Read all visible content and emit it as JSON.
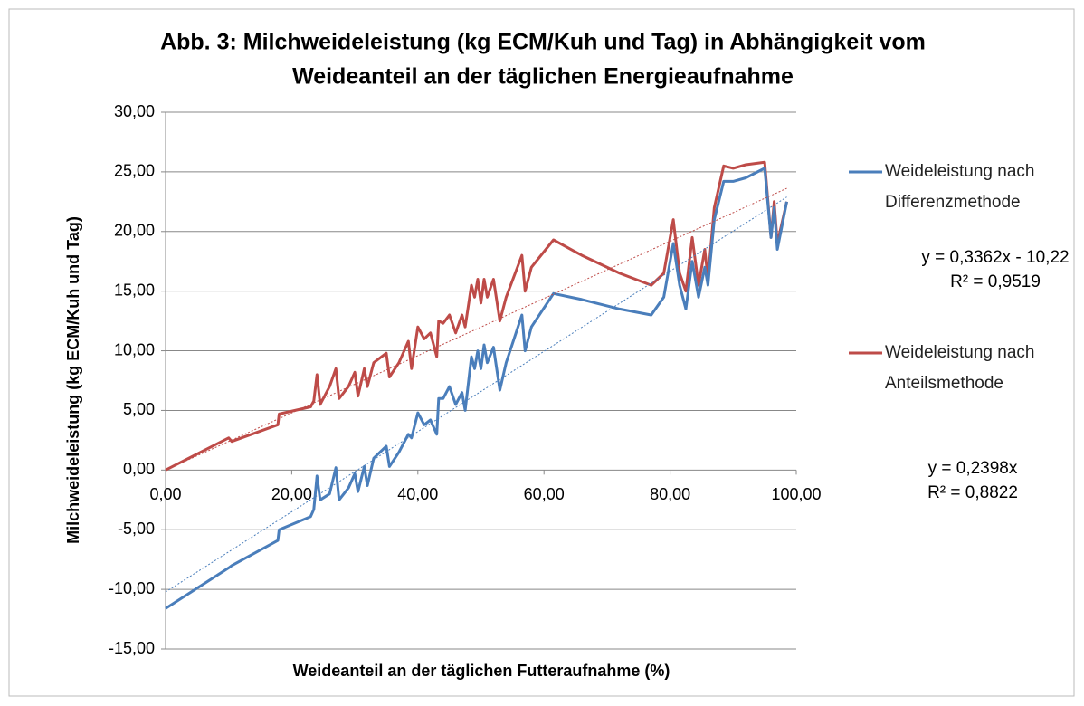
{
  "chart_data": {
    "type": "line",
    "title": [
      "Abb. 3: Milchweideleistung  (kg ECM/Kuh und Tag) in Abhängigkeit vom",
      "Weideanteil an der täglichen Energieaufnahme"
    ],
    "x_label": "Weideanteil an der täglichen Futteraufnahme (%)",
    "y_label": "Milchweideleistung  (kg ECM/Kuh und Tag)",
    "x": [
      0,
      10,
      10.5,
      17.8,
      18,
      23,
      23.5,
      24,
      24.5,
      26,
      27,
      27.5,
      29,
      30,
      30.5,
      31.5,
      32,
      33,
      35,
      35.5,
      37,
      38.5,
      39,
      40,
      41,
      42,
      43,
      43.3,
      44,
      45,
      46,
      47,
      47.5,
      48.5,
      49,
      49.5,
      50,
      50.5,
      51,
      52,
      53,
      54,
      56.5,
      57,
      58,
      61.5,
      66,
      72,
      77,
      79,
      80.5,
      81.5,
      82.5,
      83.5,
      84.5,
      85.5,
      86,
      87,
      88.5,
      90,
      92,
      95,
      96,
      96.5,
      97,
      98.5
    ],
    "series": [
      {
        "name": "Weideleistung nach Differenzmethode",
        "color": "#4a7ebb",
        "values": [
          -11.6,
          -8.2,
          -8.0,
          -5.9,
          -5.0,
          -3.9,
          -3.3,
          -0.5,
          -2.5,
          -2.0,
          0.2,
          -2.5,
          -1.5,
          -0.3,
          -1.8,
          0.3,
          -1.3,
          1.0,
          2.0,
          0.3,
          1.5,
          3.0,
          2.7,
          4.8,
          3.8,
          4.2,
          3.0,
          6.0,
          6.0,
          7.0,
          5.5,
          6.5,
          5.0,
          9.5,
          8.5,
          10.0,
          8.5,
          10.5,
          9.0,
          10.3,
          6.7,
          9.0,
          13.0,
          10.0,
          12.0,
          14.8,
          14.3,
          13.5,
          13.0,
          14.5,
          19.0,
          15.5,
          13.5,
          17.5,
          14.5,
          17.0,
          15.5,
          21.0,
          24.2,
          24.2,
          24.5,
          25.3,
          19.5,
          22.0,
          18.5,
          22.5
        ],
        "trend": {
          "equation": "y = 0,3362x - 10,22",
          "r2": "R² = 0,9519",
          "slope": 0.3362,
          "intercept": -10.22,
          "x": [
            0,
            98.5
          ]
        }
      },
      {
        "name": "Weideleistung nach Anteilsmethode",
        "color": "#be4b48",
        "values": [
          0,
          2.7,
          2.4,
          3.8,
          4.7,
          5.3,
          5.8,
          8.0,
          5.5,
          7.0,
          8.5,
          6.0,
          7.0,
          8.2,
          6.2,
          8.5,
          7.0,
          9.0,
          9.8,
          7.8,
          9.0,
          10.8,
          8.5,
          12.0,
          11.0,
          11.5,
          9.5,
          12.5,
          12.3,
          13.0,
          11.5,
          13.0,
          12.0,
          15.5,
          14.5,
          16.0,
          14.0,
          16.0,
          14.5,
          16.0,
          12.5,
          14.5,
          18.0,
          15.0,
          17.0,
          19.3,
          18.0,
          16.5,
          15.5,
          16.5,
          21.0,
          16.5,
          15.0,
          19.5,
          15.5,
          18.5,
          16.0,
          22.0,
          25.5,
          25.3,
          25.6,
          25.8,
          19.5,
          22.5,
          19.0,
          22.5
        ],
        "trend": {
          "equation": "y = 0,2398x",
          "r2": "R² = 0,8822",
          "slope": 0.2398,
          "intercept": 0,
          "x": [
            0,
            98.5
          ]
        }
      }
    ],
    "xlim": [
      0,
      100
    ],
    "xticks": [
      {
        "value": 0,
        "label": "0,00"
      },
      {
        "value": 20,
        "label": "20,00"
      },
      {
        "value": 40,
        "label": "40,00"
      },
      {
        "value": 60,
        "label": "60,00"
      },
      {
        "value": 80,
        "label": "80,00"
      },
      {
        "value": 100,
        "label": "100,00"
      }
    ],
    "ylim": [
      -15,
      30
    ],
    "yticks": [
      {
        "value": -15,
        "label": "-15,00"
      },
      {
        "value": -10,
        "label": "-10,00"
      },
      {
        "value": -5,
        "label": "-5,00"
      },
      {
        "value": 0,
        "label": "0,00"
      },
      {
        "value": 5,
        "label": "5,00"
      },
      {
        "value": 10,
        "label": "10,00"
      },
      {
        "value": 15,
        "label": "15,00"
      },
      {
        "value": 20,
        "label": "20,00"
      },
      {
        "value": 25,
        "label": "25,00"
      },
      {
        "value": 30,
        "label": "30,00"
      }
    ],
    "grid": true,
    "legend": "right"
  }
}
